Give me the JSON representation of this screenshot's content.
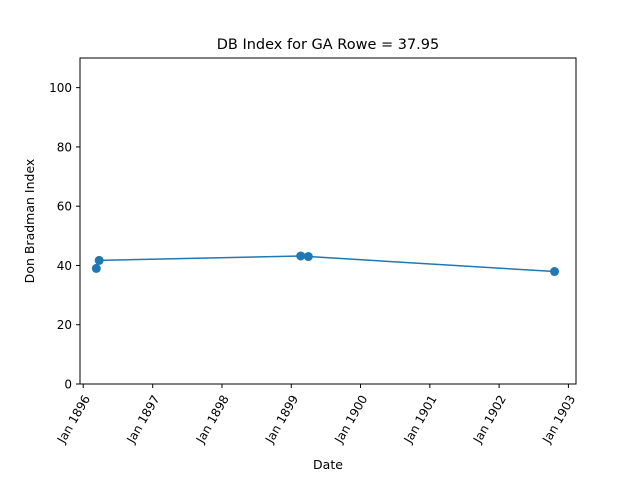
{
  "chart_data": {
    "type": "line",
    "title": "DB Index for GA Rowe = 37.95",
    "xlabel": "Date",
    "ylabel": "Don Bradman Index",
    "x_ticks": [
      "Jan 1896",
      "Jan 1897",
      "Jan 1898",
      "Jan 1899",
      "Jan 1900",
      "Jan 1901",
      "Jan 1902",
      "Jan 1903"
    ],
    "y_ticks": [
      "0",
      "20",
      "40",
      "60",
      "80",
      "100"
    ],
    "ylim": [
      0,
      110
    ],
    "xlim": [
      "1895-12-15",
      "1903-02-10"
    ],
    "grid": false,
    "series": [
      {
        "color": "#1f77b4",
        "marker": "circle",
        "points": [
          {
            "x": "1896-03-10",
            "y": 39.0
          },
          {
            "x": "1896-03-25",
            "y": 41.7
          },
          {
            "x": "1899-02-20",
            "y": 43.2
          },
          {
            "x": "1899-04-01",
            "y": 43.0
          },
          {
            "x": "1902-10-20",
            "y": 37.95
          }
        ]
      }
    ]
  }
}
